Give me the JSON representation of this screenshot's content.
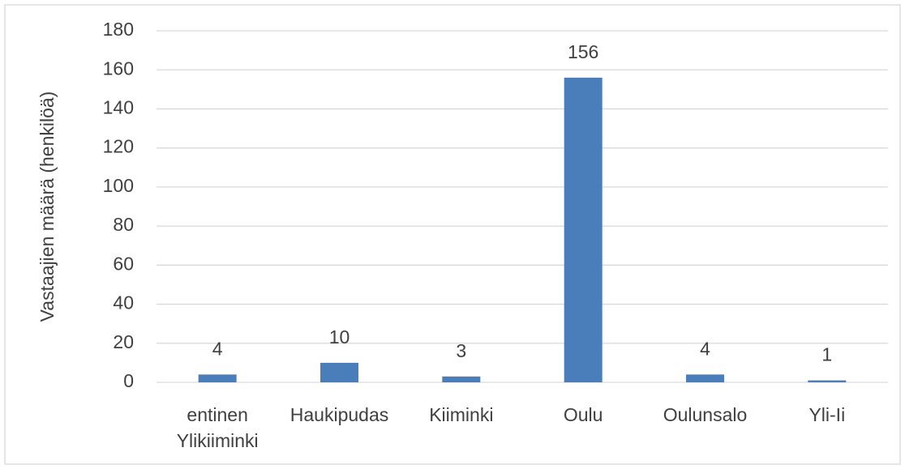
{
  "chart_data": {
    "type": "bar",
    "y_label": "Vastaajien määrä (henkilöä)",
    "categories": [
      "entinen Ylikiiminki",
      "Haukipudas",
      "Kiiminki",
      "Oulu",
      "Oulunsalo",
      "Yli-Ii"
    ],
    "values": [
      4,
      10,
      3,
      156,
      4,
      1
    ],
    "color": "#4a7ebb",
    "ylim": [
      0,
      180
    ],
    "yticks": [
      0,
      20,
      40,
      60,
      80,
      100,
      120,
      140,
      160,
      180
    ],
    "grid": true,
    "data_labels": true
  }
}
